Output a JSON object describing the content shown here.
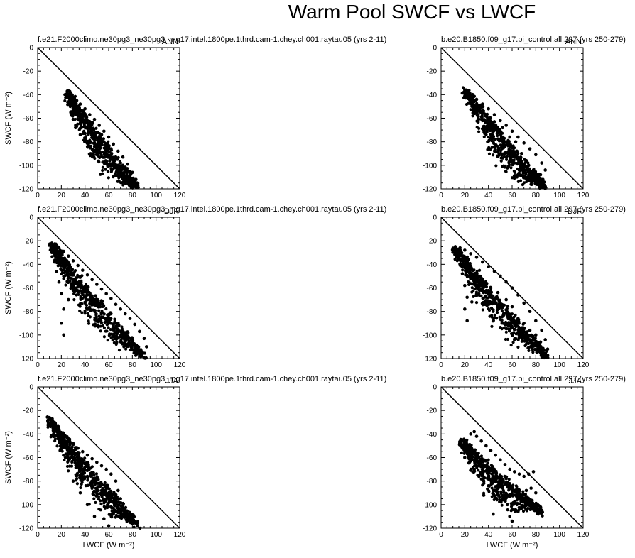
{
  "figure": {
    "title": "Warm Pool SWCF vs LWCF",
    "xlabel": "LWCF (W m⁻²)",
    "ylabel": "SWCF (W m⁻²)"
  },
  "chart_data": [
    {
      "type": "scatter",
      "panel": "top-left",
      "case": "f.e21.F2000climo.ne30pg3_ne30pg3_mg17.intel.1800pe.1thrd.cam-1.chey.ch001.raytau05 (yrs 2-11)",
      "season": "ANN",
      "xlim": [
        0,
        120
      ],
      "ylim": [
        -120,
        0
      ],
      "xticks": [
        0,
        20,
        40,
        60,
        80,
        100,
        120
      ],
      "yticks": [
        0,
        -20,
        -40,
        -60,
        -80,
        -100,
        -120
      ],
      "reference_line": "1:1 (SWCF = -LWCF)",
      "cloud": {
        "head": [
          25,
          -37
        ],
        "tail": [
          83,
          -117
        ]
      },
      "points": [
        [
          25,
          -37
        ],
        [
          27,
          -40
        ],
        [
          30,
          -42
        ],
        [
          33,
          -45
        ],
        [
          36,
          -48
        ],
        [
          40,
          -52
        ],
        [
          44,
          -57
        ],
        [
          48,
          -61
        ],
        [
          52,
          -66
        ],
        [
          56,
          -71
        ],
        [
          60,
          -76
        ],
        [
          64,
          -82
        ],
        [
          68,
          -88
        ],
        [
          72,
          -93
        ],
        [
          76,
          -99
        ],
        [
          80,
          -106
        ],
        [
          83,
          -112
        ],
        [
          78,
          -110
        ],
        [
          74,
          -104
        ],
        [
          70,
          -98
        ],
        [
          66,
          -93
        ],
        [
          60,
          -85
        ],
        [
          56,
          -80
        ],
        [
          50,
          -72
        ],
        [
          45,
          -68
        ],
        [
          40,
          -73
        ],
        [
          36,
          -74
        ],
        [
          32,
          -68
        ],
        [
          30,
          -61
        ],
        [
          28,
          -55
        ],
        [
          35,
          -55
        ],
        [
          42,
          -62
        ],
        [
          46,
          -64
        ],
        [
          54,
          -74
        ],
        [
          62,
          -86
        ],
        [
          58,
          -90
        ],
        [
          72,
          -100
        ],
        [
          76,
          -105
        ],
        [
          80,
          -117
        ],
        [
          84,
          -115
        ]
      ]
    },
    {
      "type": "scatter",
      "panel": "top-right",
      "case": "b.e20.B1850.f09_g17.pi_control.all.297 (yrs 250-279)",
      "season": "ANN",
      "xlim": [
        0,
        120
      ],
      "ylim": [
        -120,
        0
      ],
      "xticks": [
        0,
        20,
        40,
        60,
        80,
        100,
        120
      ],
      "yticks": [
        0,
        -20,
        -40,
        -60,
        -80,
        -100,
        -120
      ],
      "reference_line": "1:1 (SWCF = -LWCF)",
      "cloud": {
        "head": [
          20,
          -35
        ],
        "tail": [
          88,
          -118
        ]
      },
      "points": [
        [
          20,
          -36
        ],
        [
          25,
          -40
        ],
        [
          30,
          -44
        ],
        [
          35,
          -48
        ],
        [
          40,
          -52
        ],
        [
          45,
          -57
        ],
        [
          50,
          -62
        ],
        [
          55,
          -66
        ],
        [
          60,
          -71
        ],
        [
          65,
          -76
        ],
        [
          70,
          -81
        ],
        [
          75,
          -86
        ],
        [
          80,
          -91
        ],
        [
          85,
          -98
        ],
        [
          88,
          -104
        ],
        [
          30,
          -52
        ],
        [
          38,
          -58
        ],
        [
          45,
          -63
        ],
        [
          52,
          -68
        ],
        [
          58,
          -76
        ],
        [
          63,
          -80
        ],
        [
          50,
          -72
        ],
        [
          56,
          -80
        ],
        [
          60,
          -85
        ],
        [
          64,
          -88
        ],
        [
          68,
          -90
        ],
        [
          72,
          -96
        ],
        [
          74,
          -100
        ],
        [
          78,
          -104
        ],
        [
          84,
          -108
        ],
        [
          86,
          -112
        ],
        [
          88,
          -118
        ],
        [
          70,
          -105
        ],
        [
          76,
          -110
        ],
        [
          66,
          -95
        ],
        [
          60,
          -90
        ],
        [
          52,
          -76
        ],
        [
          46,
          -70
        ],
        [
          40,
          -60
        ],
        [
          35,
          -62
        ]
      ]
    },
    {
      "type": "scatter",
      "panel": "middle-left",
      "case": "f.e21.F2000climo.ne30pg3_ne30pg3_mg17.intel.1800pe.1thrd.cam-1.chey.ch001.raytau05 (yrs 2-11)",
      "season": "DJF",
      "xlim": [
        0,
        120
      ],
      "ylim": [
        -120,
        0
      ],
      "xticks": [
        0,
        20,
        40,
        60,
        80,
        100,
        120
      ],
      "yticks": [
        0,
        -20,
        -40,
        -60,
        -80,
        -100,
        -120
      ],
      "reference_line": "1:1 (SWCF = -LWCF)",
      "cloud": {
        "head": [
          12,
          -22
        ],
        "tail": [
          90,
          -118
        ]
      },
      "points": [
        [
          12,
          -22
        ],
        [
          15,
          -24
        ],
        [
          18,
          -26
        ],
        [
          22,
          -29
        ],
        [
          26,
          -33
        ],
        [
          30,
          -37
        ],
        [
          34,
          -41
        ],
        [
          38,
          -45
        ],
        [
          42,
          -49
        ],
        [
          46,
          -53
        ],
        [
          50,
          -57
        ],
        [
          54,
          -61
        ],
        [
          58,
          -65
        ],
        [
          62,
          -69
        ],
        [
          66,
          -74
        ],
        [
          70,
          -78
        ],
        [
          74,
          -82
        ],
        [
          78,
          -86
        ],
        [
          82,
          -91
        ],
        [
          86,
          -97
        ],
        [
          90,
          -103
        ],
        [
          92,
          -110
        ],
        [
          12,
          -30
        ],
        [
          14,
          -38
        ],
        [
          16,
          -46
        ],
        [
          18,
          -55
        ],
        [
          20,
          -65
        ],
        [
          22,
          -78
        ],
        [
          20,
          -90
        ],
        [
          22,
          -100
        ],
        [
          26,
          -70
        ],
        [
          30,
          -62
        ],
        [
          36,
          -58
        ],
        [
          42,
          -66
        ],
        [
          48,
          -70
        ],
        [
          55,
          -74
        ],
        [
          62,
          -82
        ],
        [
          68,
          -90
        ],
        [
          74,
          -98
        ],
        [
          80,
          -104
        ],
        [
          85,
          -110
        ],
        [
          88,
          -118
        ]
      ]
    },
    {
      "type": "scatter",
      "panel": "middle-right",
      "case": "b.e20.B1850.f09_g17.pi_control.all.297 (yrs 250-279)",
      "season": "DJF",
      "xlim": [
        0,
        120
      ],
      "ylim": [
        -120,
        0
      ],
      "xticks": [
        0,
        20,
        40,
        60,
        80,
        100,
        120
      ],
      "yticks": [
        0,
        -20,
        -40,
        -60,
        -80,
        -100,
        -120
      ],
      "reference_line": "1:1 (SWCF = -LWCF)",
      "cloud": {
        "head": [
          12,
          -25
        ],
        "tail": [
          90,
          -118
        ]
      },
      "points": [
        [
          12,
          -25
        ],
        [
          16,
          -26
        ],
        [
          20,
          -28
        ],
        [
          25,
          -31
        ],
        [
          30,
          -34
        ],
        [
          35,
          -38
        ],
        [
          40,
          -42
        ],
        [
          45,
          -46
        ],
        [
          50,
          -50
        ],
        [
          55,
          -55
        ],
        [
          60,
          -60
        ],
        [
          65,
          -66
        ],
        [
          70,
          -73
        ],
        [
          75,
          -80
        ],
        [
          80,
          -88
        ],
        [
          85,
          -96
        ],
        [
          88,
          -104
        ],
        [
          90,
          -112
        ],
        [
          14,
          -32
        ],
        [
          16,
          -40
        ],
        [
          18,
          -48
        ],
        [
          20,
          -58
        ],
        [
          22,
          -68
        ],
        [
          20,
          -78
        ],
        [
          22,
          -88
        ],
        [
          26,
          -72
        ],
        [
          30,
          -60
        ],
        [
          36,
          -56
        ],
        [
          42,
          -60
        ],
        [
          48,
          -64
        ],
        [
          55,
          -70
        ],
        [
          60,
          -76
        ],
        [
          65,
          -86
        ],
        [
          70,
          -90
        ],
        [
          75,
          -96
        ],
        [
          80,
          -100
        ],
        [
          84,
          -106
        ],
        [
          86,
          -112
        ],
        [
          65,
          -98
        ]
      ]
    },
    {
      "type": "scatter",
      "panel": "bottom-left",
      "case": "f.e21.F2000climo.ne30pg3_ne30pg3_mg17.intel.1800pe.1thrd.cam-1.chey.ch001.raytau05 (yrs 2-11)",
      "season": "JJA",
      "xlim": [
        0,
        120
      ],
      "ylim": [
        -120,
        0
      ],
      "xticks": [
        0,
        20,
        40,
        60,
        80,
        100,
        120
      ],
      "yticks": [
        0,
        -20,
        -40,
        -60,
        -80,
        -100,
        -120
      ],
      "reference_line": "1:1 (SWCF = -LWCF)",
      "cloud": {
        "head": [
          10,
          -26
        ],
        "tail": [
          84,
          -116
        ]
      },
      "points": [
        [
          10,
          -26
        ],
        [
          12,
          -29
        ],
        [
          15,
          -32
        ],
        [
          18,
          -36
        ],
        [
          22,
          -40
        ],
        [
          26,
          -44
        ],
        [
          30,
          -48
        ],
        [
          34,
          -52
        ],
        [
          38,
          -55
        ],
        [
          42,
          -58
        ],
        [
          46,
          -61
        ],
        [
          50,
          -64
        ],
        [
          54,
          -67
        ],
        [
          58,
          -70
        ],
        [
          62,
          -74
        ],
        [
          66,
          -80
        ],
        [
          68,
          -88
        ],
        [
          14,
          -38
        ],
        [
          18,
          -44
        ],
        [
          22,
          -50
        ],
        [
          26,
          -56
        ],
        [
          30,
          -60
        ],
        [
          34,
          -64
        ],
        [
          38,
          -70
        ],
        [
          42,
          -76
        ],
        [
          46,
          -80
        ],
        [
          50,
          -86
        ],
        [
          54,
          -92
        ],
        [
          58,
          -96
        ],
        [
          62,
          -102
        ],
        [
          66,
          -106
        ],
        [
          30,
          -80
        ],
        [
          36,
          -90
        ],
        [
          42,
          -100
        ],
        [
          48,
          -110
        ],
        [
          56,
          -112
        ],
        [
          60,
          -118
        ],
        [
          70,
          -95
        ],
        [
          80,
          -116
        ],
        [
          84,
          -116
        ]
      ]
    },
    {
      "type": "scatter",
      "panel": "bottom-right",
      "case": "b.e20.B1850.f09_g17.pi_control.all.297 (yrs 250-279)",
      "season": "JJA",
      "xlim": [
        0,
        120
      ],
      "ylim": [
        -120,
        0
      ],
      "xticks": [
        0,
        20,
        40,
        60,
        80,
        100,
        120
      ],
      "yticks": [
        0,
        -20,
        -40,
        -60,
        -80,
        -100,
        -120
      ],
      "reference_line": "1:1 (SWCF = -LWCF)",
      "cloud": {
        "head": [
          18,
          -45
        ],
        "tail": [
          84,
          -104
        ]
      },
      "points": [
        [
          18,
          -45
        ],
        [
          20,
          -50
        ],
        [
          22,
          -55
        ],
        [
          25,
          -40
        ],
        [
          28,
          -38
        ],
        [
          30,
          -42
        ],
        [
          34,
          -46
        ],
        [
          38,
          -50
        ],
        [
          42,
          -54
        ],
        [
          46,
          -58
        ],
        [
          50,
          -62
        ],
        [
          54,
          -66
        ],
        [
          58,
          -70
        ],
        [
          62,
          -72
        ],
        [
          66,
          -74
        ],
        [
          70,
          -76
        ],
        [
          74,
          -74
        ],
        [
          78,
          -72
        ],
        [
          20,
          -60
        ],
        [
          24,
          -64
        ],
        [
          28,
          -70
        ],
        [
          32,
          -76
        ],
        [
          36,
          -80
        ],
        [
          40,
          -84
        ],
        [
          44,
          -88
        ],
        [
          48,
          -92
        ],
        [
          52,
          -96
        ],
        [
          56,
          -100
        ],
        [
          60,
          -104
        ],
        [
          64,
          -100
        ],
        [
          68,
          -92
        ],
        [
          72,
          -88
        ],
        [
          76,
          -86
        ],
        [
          80,
          -90
        ],
        [
          84,
          -102
        ],
        [
          82,
          -104
        ],
        [
          58,
          -110
        ],
        [
          60,
          -114
        ],
        [
          44,
          -108
        ],
        [
          36,
          -92
        ]
      ]
    }
  ]
}
